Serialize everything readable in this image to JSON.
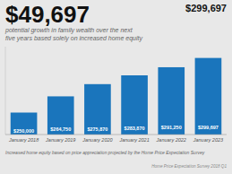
{
  "chart_data": {
    "type": "bar",
    "title": "$49,697",
    "subtitle": "potential growth in family wealth over the next\nfive years based solely on increased home equity",
    "annotations": [
      "$299,697",
      "Increased home equity based on price appreciation projected by the Home Price Expectation Survey",
      "Home Price Expectation Survey 2018 Q1"
    ],
    "categories": [
      "January 2018",
      "January 2019",
      "January 2020",
      "January 2021",
      "January 2022",
      "January 2023"
    ],
    "values": [
      250000,
      264750,
      275870,
      283870,
      291250,
      299697
    ],
    "value_labels": [
      "$250,000",
      "$264,750",
      "$275,870",
      "$283,870",
      "$291,250",
      "$299,697"
    ],
    "data_labels": true,
    "color": "#1a75bc",
    "ylim": [
      230000,
      310000
    ],
    "tick_labels": "x"
  }
}
